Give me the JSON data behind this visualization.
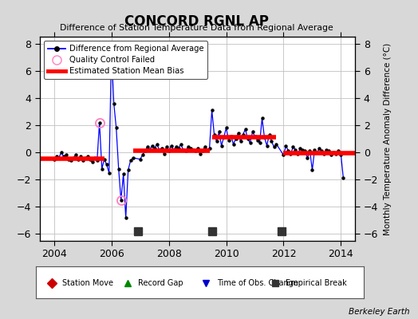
{
  "title": "CONCORD RGNL AP",
  "subtitle": "Difference of Station Temperature Data from Regional Average",
  "ylabel": "Monthly Temperature Anomaly Difference (°C)",
  "credit": "Berkeley Earth",
  "ylim": [
    -6.5,
    8.5
  ],
  "xlim": [
    2003.5,
    2014.5
  ],
  "xticks": [
    2004,
    2006,
    2008,
    2010,
    2012,
    2014
  ],
  "yticks": [
    -6,
    -4,
    -2,
    0,
    2,
    4,
    6,
    8
  ],
  "bg_color": "#d8d8d8",
  "plot_bg_color": "#ffffff",
  "grid_color": "#c0c0c0",
  "time_series": [
    [
      2004.0,
      -0.5
    ],
    [
      2004.083,
      -0.3
    ],
    [
      2004.167,
      -0.4
    ],
    [
      2004.25,
      0.0
    ],
    [
      2004.333,
      -0.3
    ],
    [
      2004.417,
      -0.2
    ],
    [
      2004.5,
      -0.5
    ],
    [
      2004.583,
      -0.6
    ],
    [
      2004.667,
      -0.4
    ],
    [
      2004.75,
      -0.2
    ],
    [
      2004.833,
      -0.5
    ],
    [
      2004.917,
      -0.3
    ],
    [
      2005.0,
      -0.6
    ],
    [
      2005.083,
      -0.4
    ],
    [
      2005.167,
      -0.3
    ],
    [
      2005.25,
      -0.5
    ],
    [
      2005.333,
      -0.7
    ],
    [
      2005.417,
      -0.4
    ],
    [
      2005.5,
      -0.6
    ],
    [
      2005.583,
      2.2
    ],
    [
      2005.667,
      -1.2
    ],
    [
      2005.75,
      -0.5
    ],
    [
      2005.833,
      -0.9
    ],
    [
      2005.917,
      -1.5
    ],
    [
      2006.0,
      7.5
    ],
    [
      2006.083,
      3.6
    ],
    [
      2006.167,
      1.8
    ],
    [
      2006.25,
      -1.2
    ],
    [
      2006.333,
      -3.5
    ],
    [
      2006.417,
      -1.6
    ],
    [
      2006.5,
      -4.8
    ],
    [
      2006.583,
      -1.3
    ],
    [
      2006.667,
      -0.6
    ],
    [
      2006.75,
      -0.4
    ],
    [
      2007.0,
      -0.5
    ],
    [
      2007.083,
      -0.2
    ],
    [
      2007.167,
      0.1
    ],
    [
      2007.25,
      0.4
    ],
    [
      2007.333,
      0.2
    ],
    [
      2007.417,
      0.5
    ],
    [
      2007.5,
      0.3
    ],
    [
      2007.583,
      0.6
    ],
    [
      2007.667,
      0.2
    ],
    [
      2007.75,
      0.3
    ],
    [
      2007.833,
      -0.1
    ],
    [
      2007.917,
      0.4
    ],
    [
      2008.0,
      0.1
    ],
    [
      2008.083,
      0.5
    ],
    [
      2008.167,
      0.2
    ],
    [
      2008.25,
      0.4
    ],
    [
      2008.333,
      0.3
    ],
    [
      2008.417,
      0.6
    ],
    [
      2008.5,
      0.2
    ],
    [
      2008.583,
      0.1
    ],
    [
      2008.667,
      0.4
    ],
    [
      2008.75,
      0.3
    ],
    [
      2008.833,
      0.2
    ],
    [
      2008.917,
      0.1
    ],
    [
      2009.0,
      0.3
    ],
    [
      2009.083,
      -0.1
    ],
    [
      2009.167,
      0.1
    ],
    [
      2009.25,
      0.4
    ],
    [
      2009.333,
      0.2
    ],
    [
      2009.417,
      0.3
    ],
    [
      2009.5,
      3.1
    ],
    [
      2009.583,
      1.3
    ],
    [
      2009.667,
      0.8
    ],
    [
      2009.75,
      1.5
    ],
    [
      2009.833,
      0.5
    ],
    [
      2009.917,
      1.1
    ],
    [
      2010.0,
      1.8
    ],
    [
      2010.083,
      0.9
    ],
    [
      2010.167,
      1.2
    ],
    [
      2010.25,
      0.6
    ],
    [
      2010.333,
      1.0
    ],
    [
      2010.417,
      1.4
    ],
    [
      2010.5,
      0.8
    ],
    [
      2010.583,
      1.3
    ],
    [
      2010.667,
      1.7
    ],
    [
      2010.75,
      1.0
    ],
    [
      2010.833,
      0.7
    ],
    [
      2010.917,
      1.5
    ],
    [
      2011.0,
      1.2
    ],
    [
      2011.083,
      0.9
    ],
    [
      2011.167,
      0.7
    ],
    [
      2011.25,
      2.5
    ],
    [
      2011.333,
      1.1
    ],
    [
      2011.417,
      0.5
    ],
    [
      2011.5,
      1.3
    ],
    [
      2011.583,
      0.8
    ],
    [
      2011.667,
      0.4
    ],
    [
      2011.75,
      0.6
    ],
    [
      2012.0,
      -0.2
    ],
    [
      2012.083,
      0.5
    ],
    [
      2012.167,
      0.1
    ],
    [
      2012.25,
      -0.1
    ],
    [
      2012.333,
      0.4
    ],
    [
      2012.417,
      0.2
    ],
    [
      2012.5,
      -0.1
    ],
    [
      2012.583,
      0.3
    ],
    [
      2012.667,
      0.2
    ],
    [
      2012.75,
      0.1
    ],
    [
      2012.833,
      -0.4
    ],
    [
      2012.917,
      0.1
    ],
    [
      2013.0,
      -1.3
    ],
    [
      2013.083,
      0.2
    ],
    [
      2013.167,
      0.0
    ],
    [
      2013.25,
      0.3
    ],
    [
      2013.333,
      0.1
    ],
    [
      2013.417,
      -0.1
    ],
    [
      2013.5,
      0.2
    ],
    [
      2013.583,
      0.1
    ],
    [
      2013.667,
      -0.2
    ],
    [
      2013.75,
      0.0
    ],
    [
      2013.833,
      -0.1
    ],
    [
      2013.917,
      0.1
    ],
    [
      2014.0,
      -0.2
    ],
    [
      2014.083,
      -1.9
    ]
  ],
  "qc_failed_times": [
    2005.583,
    2006.0,
    2006.333
  ],
  "bias_segments": [
    {
      "xstart": 2003.5,
      "xend": 2005.75,
      "bias": -0.45
    },
    {
      "xstart": 2006.75,
      "xend": 2009.42,
      "bias": 0.15
    },
    {
      "xstart": 2009.5,
      "xend": 2011.75,
      "bias": 1.1
    },
    {
      "xstart": 2012.0,
      "xend": 2014.5,
      "bias": -0.05
    }
  ],
  "empirical_breaks": [
    2006.917,
    2009.5,
    2011.917
  ],
  "line_color": "#0000ff",
  "dot_color": "#000000",
  "qc_color": "#ff80c0",
  "bias_color": "#ff0000",
  "break_color": "#333333",
  "bottom_legend": {
    "items": [
      {
        "marker": "D",
        "color": "#cc0000",
        "label": "Station Move"
      },
      {
        "marker": "^",
        "color": "#008800",
        "label": "Record Gap"
      },
      {
        "marker": "v",
        "color": "#0000cc",
        "label": "Time of Obs. Change"
      },
      {
        "marker": "s",
        "color": "#333333",
        "label": "Empirical Break"
      }
    ]
  }
}
